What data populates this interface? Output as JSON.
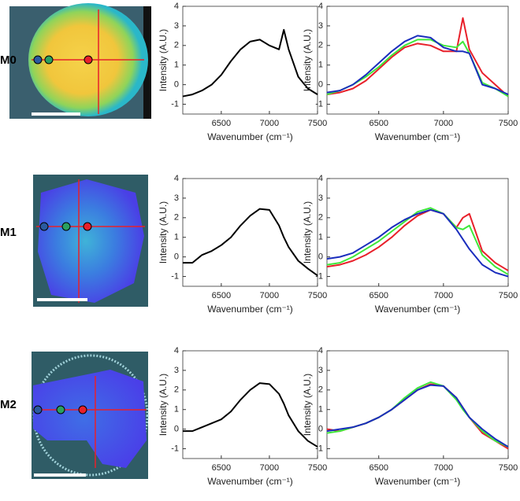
{
  "row_labels": [
    "M0",
    "M1",
    "M2"
  ],
  "chart_data": [
    {
      "type": "line",
      "xlabel": "Wavenumber (cm⁻¹)",
      "ylabel": "Intensity (A.U.)",
      "x": [
        6100,
        6200,
        6300,
        6400,
        6500,
        6600,
        6700,
        6800,
        6900,
        7000,
        7100,
        7150,
        7200,
        7300,
        7400,
        7500
      ],
      "xlim": [
        6100,
        7500
      ],
      "xticks": [
        6500,
        7000,
        7500
      ],
      "ylim": [
        -1.5,
        4
      ],
      "yticks": [
        -1,
        0,
        1,
        2,
        3,
        4
      ],
      "series": [
        {
          "color": "#000000",
          "values": [
            -0.6,
            -0.5,
            -0.3,
            0,
            0.5,
            1.2,
            1.8,
            2.2,
            2.3,
            2.0,
            1.8,
            2.8,
            1.8,
            0.4,
            -0.2,
            -0.5
          ]
        }
      ]
    },
    {
      "type": "line",
      "xlabel": "Wavenumber (cm⁻¹)",
      "ylabel": "Intensity (A.U.)",
      "x": [
        6100,
        6200,
        6300,
        6400,
        6500,
        6600,
        6700,
        6800,
        6900,
        7000,
        7100,
        7150,
        7200,
        7300,
        7400,
        7500
      ],
      "xlim": [
        6100,
        7500
      ],
      "xticks": [
        6500,
        7000,
        7500
      ],
      "ylim": [
        -1.5,
        4
      ],
      "yticks": [
        -1,
        0,
        1,
        2,
        3,
        4
      ],
      "series": [
        {
          "color": "#e8202a",
          "values": [
            -0.5,
            -0.4,
            -0.2,
            0.2,
            0.8,
            1.4,
            1.9,
            2.1,
            2.0,
            1.7,
            1.7,
            3.4,
            1.8,
            0.6,
            0,
            -0.6
          ]
        },
        {
          "color": "#3ee83a",
          "values": [
            -0.5,
            -0.3,
            0,
            0.4,
            0.9,
            1.5,
            2.0,
            2.3,
            2.3,
            2.0,
            1.9,
            2.2,
            1.6,
            0.1,
            -0.2,
            -0.6
          ]
        },
        {
          "color": "#1a2dbd",
          "values": [
            -0.4,
            -0.3,
            0,
            0.5,
            1.1,
            1.7,
            2.2,
            2.5,
            2.4,
            1.9,
            1.7,
            1.7,
            1.6,
            0,
            -0.2,
            -0.5
          ]
        }
      ]
    },
    {
      "type": "line",
      "xlabel": "Wavenumber (cm⁻¹)",
      "ylabel": "Intensity (A.U.)",
      "x": [
        6100,
        6200,
        6300,
        6400,
        6500,
        6600,
        6700,
        6800,
        6900,
        7000,
        7100,
        7150,
        7200,
        7300,
        7400,
        7500
      ],
      "xlim": [
        6100,
        7500
      ],
      "xticks": [
        6500,
        7000,
        7500
      ],
      "ylim": [
        -1.5,
        4
      ],
      "yticks": [
        -1,
        0,
        1,
        2,
        3,
        4
      ],
      "series": [
        {
          "color": "#000000",
          "values": [
            -0.3,
            -0.3,
            0.1,
            0.3,
            0.6,
            1.0,
            1.6,
            2.1,
            2.45,
            2.4,
            1.6,
            1.0,
            0.5,
            -0.2,
            -0.6,
            -0.95
          ]
        }
      ]
    },
    {
      "type": "line",
      "xlabel": "Wavenumber (cm⁻¹)",
      "ylabel": "Intensity (A.U.)",
      "x": [
        6100,
        6200,
        6300,
        6400,
        6500,
        6600,
        6700,
        6800,
        6900,
        7000,
        7100,
        7150,
        7200,
        7300,
        7400,
        7500
      ],
      "xlim": [
        6100,
        7500
      ],
      "xticks": [
        6500,
        7000,
        7500
      ],
      "ylim": [
        -1.5,
        4
      ],
      "yticks": [
        -1,
        0,
        1,
        2,
        3,
        4
      ],
      "series": [
        {
          "color": "#e8202a",
          "values": [
            -0.5,
            -0.4,
            -0.2,
            0.1,
            0.5,
            1.0,
            1.6,
            2.1,
            2.4,
            2.2,
            1.5,
            2.0,
            2.2,
            0.3,
            -0.3,
            -0.7
          ]
        },
        {
          "color": "#3ee83a",
          "values": [
            -0.4,
            -0.3,
            0,
            0.4,
            0.8,
            1.3,
            1.8,
            2.3,
            2.5,
            2.2,
            1.5,
            1.4,
            1.6,
            0.1,
            -0.5,
            -0.9
          ]
        },
        {
          "color": "#1a2dbd",
          "values": [
            -0.1,
            0,
            0.2,
            0.6,
            1.0,
            1.5,
            1.9,
            2.2,
            2.4,
            2.2,
            1.4,
            0.9,
            0.4,
            -0.4,
            -0.8,
            -1.0
          ]
        }
      ]
    },
    {
      "type": "line",
      "xlabel": "Wavenumber (cm⁻¹)",
      "ylabel": "Intensity (A.U.)",
      "x": [
        6100,
        6200,
        6300,
        6400,
        6500,
        6600,
        6700,
        6800,
        6900,
        7000,
        7100,
        7150,
        7200,
        7300,
        7400,
        7500
      ],
      "xlim": [
        6100,
        7500
      ],
      "xticks": [
        6500,
        7000,
        7500
      ],
      "ylim": [
        -1.5,
        4
      ],
      "yticks": [
        -1,
        0,
        1,
        2,
        3,
        4
      ],
      "series": [
        {
          "color": "#000000",
          "values": [
            -0.1,
            -0.1,
            0.1,
            0.3,
            0.5,
            0.9,
            1.5,
            2.0,
            2.35,
            2.3,
            1.8,
            1.3,
            0.7,
            -0.1,
            -0.6,
            -0.9
          ]
        }
      ]
    },
    {
      "type": "line",
      "xlabel": "Wavenumber (cm⁻¹)",
      "ylabel": "Intensity (A.U.)",
      "x": [
        6100,
        6200,
        6300,
        6400,
        6500,
        6600,
        6700,
        6800,
        6900,
        7000,
        7100,
        7150,
        7200,
        7300,
        7400,
        7500
      ],
      "xlim": [
        6100,
        7500
      ],
      "xticks": [
        6500,
        7000,
        7500
      ],
      "ylim": [
        -1.5,
        4
      ],
      "yticks": [
        -1,
        0,
        1,
        2,
        3,
        4
      ],
      "series": [
        {
          "color": "#e8202a",
          "values": [
            0,
            -0.1,
            0.1,
            0.3,
            0.6,
            1.0,
            1.5,
            2.0,
            2.3,
            2.2,
            1.6,
            1.1,
            0.6,
            -0.2,
            -0.6,
            -1.0
          ]
        },
        {
          "color": "#3ee83a",
          "values": [
            -0.2,
            -0.1,
            0.1,
            0.3,
            0.6,
            1.0,
            1.6,
            2.1,
            2.4,
            2.2,
            1.5,
            1.0,
            0.6,
            -0.1,
            -0.6,
            -0.9
          ]
        },
        {
          "color": "#1a2dbd",
          "values": [
            -0.1,
            0,
            0.1,
            0.3,
            0.6,
            1.0,
            1.5,
            2.0,
            2.25,
            2.2,
            1.6,
            1.1,
            0.6,
            0,
            -0.5,
            -0.9
          ]
        }
      ]
    }
  ]
}
